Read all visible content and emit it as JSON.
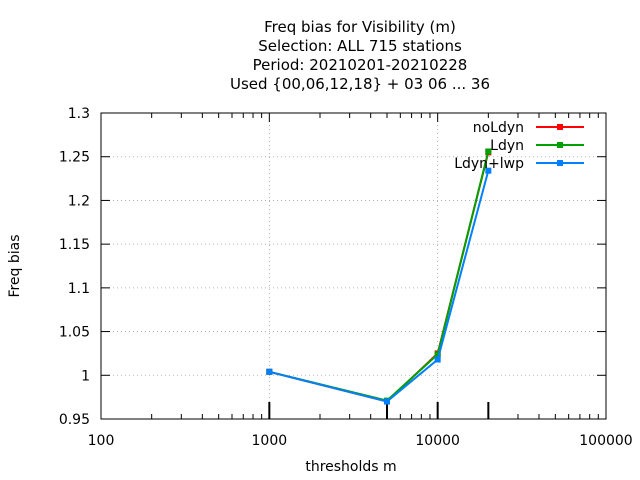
{
  "chart_data": {
    "type": "line",
    "title_lines": [
      "Freq bias  for Visibility (m)",
      "Selection: ALL    715 stations",
      "Period: 20210201-20210228",
      "Used {00,06,12,18} + 03 06 ... 36"
    ],
    "xlabel": "thresholds m",
    "ylabel": "Freq bias",
    "x_scale": "log",
    "xlim": [
      100,
      100000
    ],
    "ylim": [
      0.95,
      1.3
    ],
    "x_ticks": [
      100,
      1000,
      10000,
      100000
    ],
    "x_tick_labels": [
      "100",
      "1000",
      "10000",
      "100000"
    ],
    "y_ticks": [
      0.95,
      1.0,
      1.05,
      1.1,
      1.15,
      1.2,
      1.25,
      1.3
    ],
    "y_tick_labels": [
      "0.95",
      "1",
      "1.05",
      "1.1",
      "1.15",
      "1.2",
      "1.25",
      "1.3"
    ],
    "threshold_marks": [
      1000,
      5000,
      10000,
      20000
    ],
    "grid": true,
    "legend_position": "top-right",
    "series": [
      {
        "name": "noLdyn",
        "color": "#ff0000",
        "x": [
          1000,
          5000,
          10000,
          20000
        ],
        "y": [
          1.004,
          0.97,
          1.025,
          1.255
        ]
      },
      {
        "name": "Ldyn",
        "color": "#00a000",
        "x": [
          1000,
          5000,
          10000,
          20000
        ],
        "y": [
          1.004,
          0.971,
          1.024,
          1.256
        ]
      },
      {
        "name": "Ldyn+lwp",
        "color": "#0080ff",
        "x": [
          1000,
          5000,
          10000,
          20000
        ],
        "y": [
          1.004,
          0.97,
          1.018,
          1.234
        ]
      }
    ]
  }
}
